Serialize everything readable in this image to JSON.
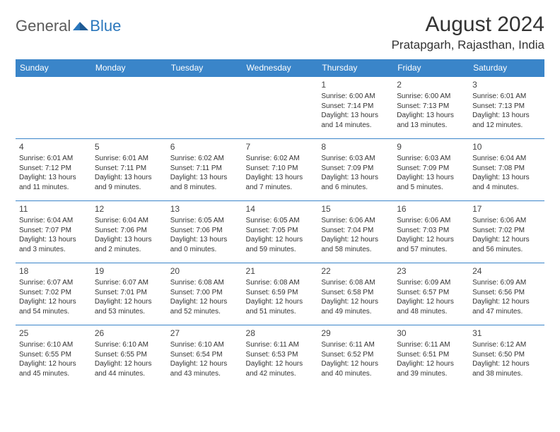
{
  "logo": {
    "text1": "General",
    "text2": "Blue"
  },
  "title": "August 2024",
  "subtitle": "Pratapgarh, Rajasthan, India",
  "colors": {
    "header_bg": "#3a85c9",
    "header_fg": "#ffffff",
    "border": "#3a85c9",
    "logo_gray": "#5a5a5a",
    "logo_blue": "#2b77bc"
  },
  "weekdays": [
    "Sunday",
    "Monday",
    "Tuesday",
    "Wednesday",
    "Thursday",
    "Friday",
    "Saturday"
  ],
  "weeks": [
    [
      null,
      null,
      null,
      null,
      {
        "n": "1",
        "sr": "Sunrise: 6:00 AM",
        "ss": "Sunset: 7:14 PM",
        "dl": "Daylight: 13 hours and 14 minutes."
      },
      {
        "n": "2",
        "sr": "Sunrise: 6:00 AM",
        "ss": "Sunset: 7:13 PM",
        "dl": "Daylight: 13 hours and 13 minutes."
      },
      {
        "n": "3",
        "sr": "Sunrise: 6:01 AM",
        "ss": "Sunset: 7:13 PM",
        "dl": "Daylight: 13 hours and 12 minutes."
      }
    ],
    [
      {
        "n": "4",
        "sr": "Sunrise: 6:01 AM",
        "ss": "Sunset: 7:12 PM",
        "dl": "Daylight: 13 hours and 11 minutes."
      },
      {
        "n": "5",
        "sr": "Sunrise: 6:01 AM",
        "ss": "Sunset: 7:11 PM",
        "dl": "Daylight: 13 hours and 9 minutes."
      },
      {
        "n": "6",
        "sr": "Sunrise: 6:02 AM",
        "ss": "Sunset: 7:11 PM",
        "dl": "Daylight: 13 hours and 8 minutes."
      },
      {
        "n": "7",
        "sr": "Sunrise: 6:02 AM",
        "ss": "Sunset: 7:10 PM",
        "dl": "Daylight: 13 hours and 7 minutes."
      },
      {
        "n": "8",
        "sr": "Sunrise: 6:03 AM",
        "ss": "Sunset: 7:09 PM",
        "dl": "Daylight: 13 hours and 6 minutes."
      },
      {
        "n": "9",
        "sr": "Sunrise: 6:03 AM",
        "ss": "Sunset: 7:09 PM",
        "dl": "Daylight: 13 hours and 5 minutes."
      },
      {
        "n": "10",
        "sr": "Sunrise: 6:04 AM",
        "ss": "Sunset: 7:08 PM",
        "dl": "Daylight: 13 hours and 4 minutes."
      }
    ],
    [
      {
        "n": "11",
        "sr": "Sunrise: 6:04 AM",
        "ss": "Sunset: 7:07 PM",
        "dl": "Daylight: 13 hours and 3 minutes."
      },
      {
        "n": "12",
        "sr": "Sunrise: 6:04 AM",
        "ss": "Sunset: 7:06 PM",
        "dl": "Daylight: 13 hours and 2 minutes."
      },
      {
        "n": "13",
        "sr": "Sunrise: 6:05 AM",
        "ss": "Sunset: 7:06 PM",
        "dl": "Daylight: 13 hours and 0 minutes."
      },
      {
        "n": "14",
        "sr": "Sunrise: 6:05 AM",
        "ss": "Sunset: 7:05 PM",
        "dl": "Daylight: 12 hours and 59 minutes."
      },
      {
        "n": "15",
        "sr": "Sunrise: 6:06 AM",
        "ss": "Sunset: 7:04 PM",
        "dl": "Daylight: 12 hours and 58 minutes."
      },
      {
        "n": "16",
        "sr": "Sunrise: 6:06 AM",
        "ss": "Sunset: 7:03 PM",
        "dl": "Daylight: 12 hours and 57 minutes."
      },
      {
        "n": "17",
        "sr": "Sunrise: 6:06 AM",
        "ss": "Sunset: 7:02 PM",
        "dl": "Daylight: 12 hours and 56 minutes."
      }
    ],
    [
      {
        "n": "18",
        "sr": "Sunrise: 6:07 AM",
        "ss": "Sunset: 7:02 PM",
        "dl": "Daylight: 12 hours and 54 minutes."
      },
      {
        "n": "19",
        "sr": "Sunrise: 6:07 AM",
        "ss": "Sunset: 7:01 PM",
        "dl": "Daylight: 12 hours and 53 minutes."
      },
      {
        "n": "20",
        "sr": "Sunrise: 6:08 AM",
        "ss": "Sunset: 7:00 PM",
        "dl": "Daylight: 12 hours and 52 minutes."
      },
      {
        "n": "21",
        "sr": "Sunrise: 6:08 AM",
        "ss": "Sunset: 6:59 PM",
        "dl": "Daylight: 12 hours and 51 minutes."
      },
      {
        "n": "22",
        "sr": "Sunrise: 6:08 AM",
        "ss": "Sunset: 6:58 PM",
        "dl": "Daylight: 12 hours and 49 minutes."
      },
      {
        "n": "23",
        "sr": "Sunrise: 6:09 AM",
        "ss": "Sunset: 6:57 PM",
        "dl": "Daylight: 12 hours and 48 minutes."
      },
      {
        "n": "24",
        "sr": "Sunrise: 6:09 AM",
        "ss": "Sunset: 6:56 PM",
        "dl": "Daylight: 12 hours and 47 minutes."
      }
    ],
    [
      {
        "n": "25",
        "sr": "Sunrise: 6:10 AM",
        "ss": "Sunset: 6:55 PM",
        "dl": "Daylight: 12 hours and 45 minutes."
      },
      {
        "n": "26",
        "sr": "Sunrise: 6:10 AM",
        "ss": "Sunset: 6:55 PM",
        "dl": "Daylight: 12 hours and 44 minutes."
      },
      {
        "n": "27",
        "sr": "Sunrise: 6:10 AM",
        "ss": "Sunset: 6:54 PM",
        "dl": "Daylight: 12 hours and 43 minutes."
      },
      {
        "n": "28",
        "sr": "Sunrise: 6:11 AM",
        "ss": "Sunset: 6:53 PM",
        "dl": "Daylight: 12 hours and 42 minutes."
      },
      {
        "n": "29",
        "sr": "Sunrise: 6:11 AM",
        "ss": "Sunset: 6:52 PM",
        "dl": "Daylight: 12 hours and 40 minutes."
      },
      {
        "n": "30",
        "sr": "Sunrise: 6:11 AM",
        "ss": "Sunset: 6:51 PM",
        "dl": "Daylight: 12 hours and 39 minutes."
      },
      {
        "n": "31",
        "sr": "Sunrise: 6:12 AM",
        "ss": "Sunset: 6:50 PM",
        "dl": "Daylight: 12 hours and 38 minutes."
      }
    ]
  ]
}
